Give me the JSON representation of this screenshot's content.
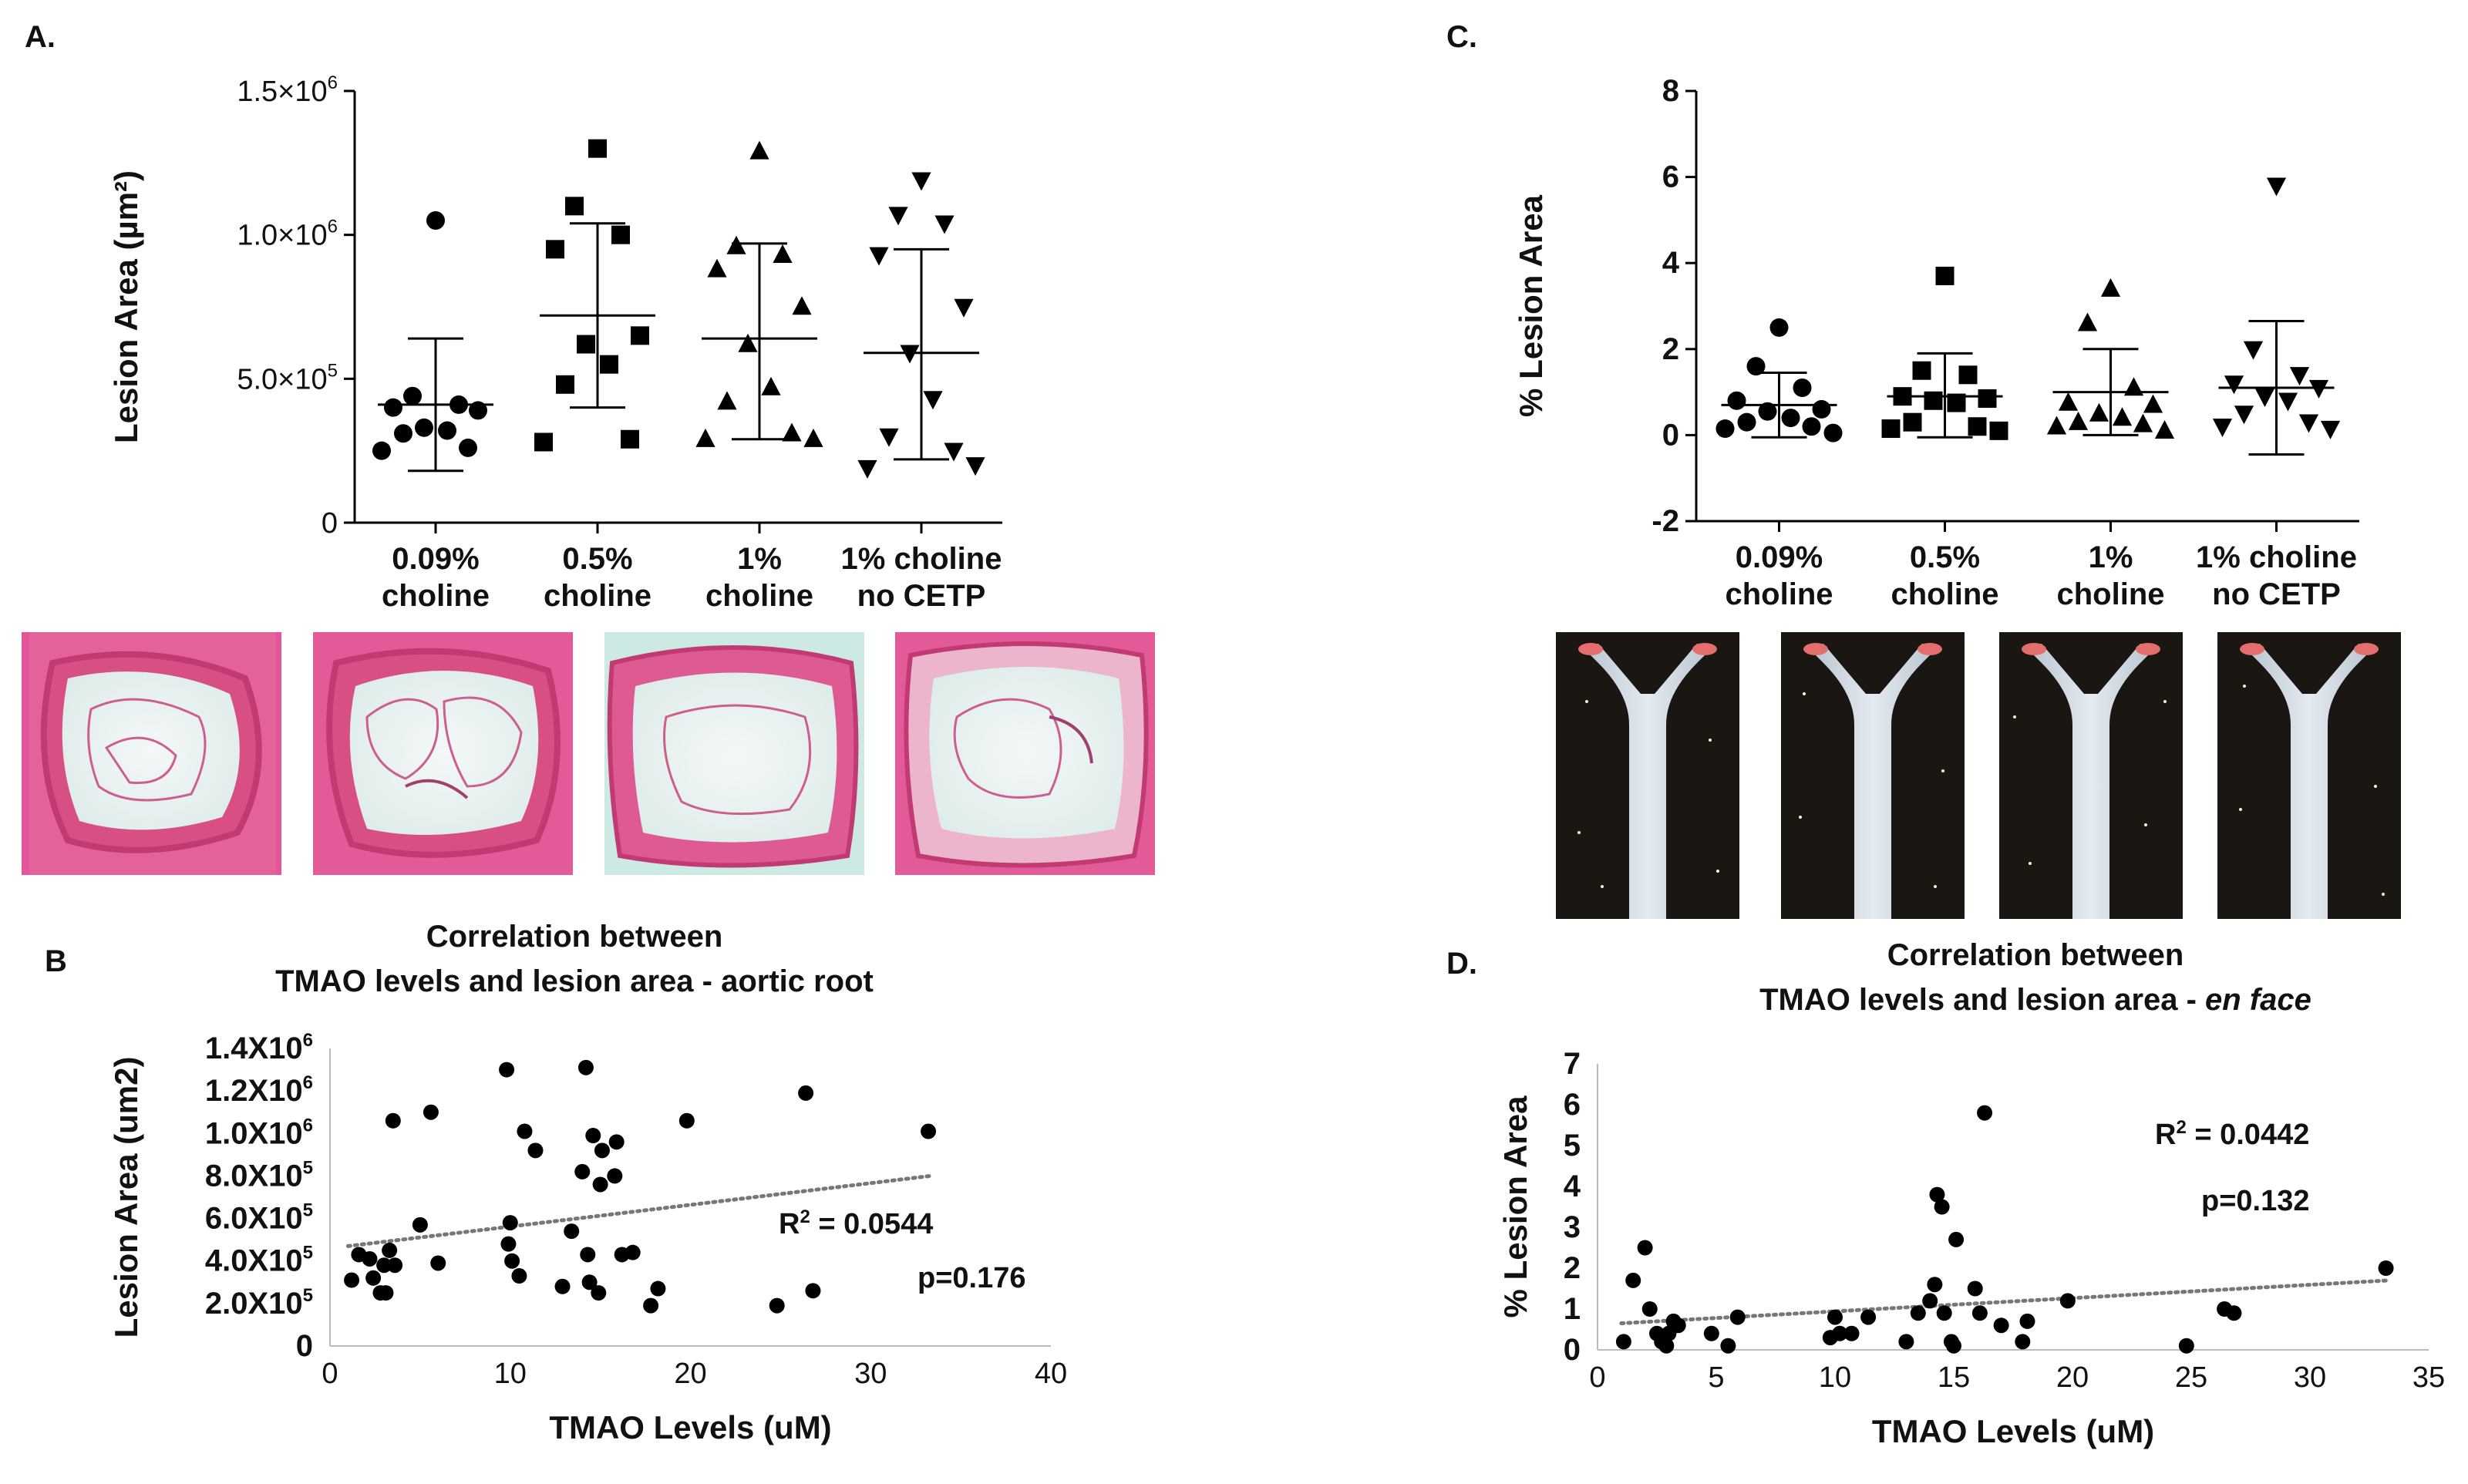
{
  "panels": {
    "a": "A.",
    "b": "B",
    "c": "C.",
    "d": "D."
  },
  "images": {
    "histology": [
      "aortic root section 0.09% choline",
      "aortic root section 0.5% choline",
      "aortic root section 1% choline",
      "aortic root section 1% choline no CETP"
    ],
    "aorta": [
      "en face aorta 0.09% choline",
      "en face aorta 0.5% choline",
      "en face aorta 1% choline",
      "en face aorta 1% choline no CETP"
    ]
  },
  "chart_data": [
    {
      "id": "A",
      "type": "scatter",
      "ylabel": "Lesion Area (µm²)",
      "ylim": [
        0,
        1500000
      ],
      "yticks": [
        {
          "v": 0,
          "m": "0",
          "e": ""
        },
        {
          "v": 500000,
          "m": "5.0×10",
          "e": "5"
        },
        {
          "v": 1000000,
          "m": "1.0×10",
          "e": "6"
        },
        {
          "v": 1500000,
          "m": "1.5×10",
          "e": "6"
        }
      ],
      "categories": [
        [
          "0.09%",
          "choline"
        ],
        [
          "0.5%",
          "choline"
        ],
        [
          "1%",
          "choline"
        ],
        [
          "1% choline",
          "no CETP"
        ]
      ],
      "markers": [
        "circle",
        "square",
        "triangle-up",
        "triangle-down"
      ],
      "groups": [
        {
          "values": [
            1050000,
            440000,
            410000,
            400000,
            390000,
            330000,
            320000,
            310000,
            260000,
            250000
          ],
          "mean": 410000,
          "sd_low": 180000,
          "sd_high": 640000
        },
        {
          "values": [
            1300000,
            1100000,
            1000000,
            950000,
            650000,
            620000,
            550000,
            480000,
            290000,
            280000
          ],
          "mean": 720000,
          "sd_low": 400000,
          "sd_high": 1040000
        },
        {
          "values": [
            1290000,
            960000,
            930000,
            880000,
            750000,
            620000,
            470000,
            420000,
            310000,
            290000,
            290000
          ],
          "mean": 640000,
          "sd_low": 290000,
          "sd_high": 970000
        },
        {
          "values": [
            1190000,
            1070000,
            1040000,
            930000,
            750000,
            590000,
            430000,
            300000,
            250000,
            190000,
            200000
          ],
          "mean": 590000,
          "sd_low": 220000,
          "sd_high": 950000
        }
      ]
    },
    {
      "id": "C",
      "type": "scatter",
      "ylabel": "% Lesion Area",
      "ylim": [
        -2,
        8
      ],
      "yticks": [
        {
          "v": -2,
          "m": "-2"
        },
        {
          "v": 0,
          "m": "0"
        },
        {
          "v": 2,
          "m": "2"
        },
        {
          "v": 4,
          "m": "4"
        },
        {
          "v": 6,
          "m": "6"
        },
        {
          "v": 8,
          "m": "8"
        }
      ],
      "categories": [
        [
          "0.09%",
          "choline"
        ],
        [
          "0.5%",
          "choline"
        ],
        [
          "1%",
          "choline"
        ],
        [
          "1% choline",
          "no CETP"
        ]
      ],
      "markers": [
        "circle",
        "square",
        "triangle-up",
        "triangle-down"
      ],
      "groups": [
        {
          "values": [
            2.5,
            1.6,
            1.1,
            0.8,
            0.6,
            0.55,
            0.4,
            0.3,
            0.2,
            0.15,
            0.05
          ],
          "mean": 0.7,
          "sd_low": -0.05,
          "sd_high": 1.45
        },
        {
          "values": [
            3.7,
            1.5,
            1.4,
            0.9,
            0.85,
            0.8,
            0.75,
            0.3,
            0.2,
            0.15,
            0.1
          ],
          "mean": 0.9,
          "sd_low": -0.05,
          "sd_high": 1.9
        },
        {
          "values": [
            3.4,
            2.6,
            1.1,
            0.75,
            0.7,
            0.5,
            0.4,
            0.3,
            0.25,
            0.2,
            0.1
          ],
          "mean": 1.0,
          "sd_low": 0.0,
          "sd_high": 2.0
        },
        {
          "values": [
            5.8,
            2.0,
            1.4,
            1.2,
            1.1,
            0.9,
            0.8,
            0.5,
            0.3,
            0.2,
            0.15
          ],
          "mean": 1.1,
          "sd_low": -0.45,
          "sd_high": 2.65
        }
      ]
    },
    {
      "id": "B",
      "type": "scatter",
      "title": [
        "Correlation between",
        "TMAO levels and lesion area - aortic root"
      ],
      "xlabel": "TMAO Levels (uM)",
      "ylabel": "Lesion Area (um2)",
      "xlim": [
        0,
        40
      ],
      "ylim": [
        0,
        1400000
      ],
      "xticks": [
        0,
        10,
        20,
        30,
        40
      ],
      "yticks": [
        {
          "v": 0,
          "m": "0",
          "e": ""
        },
        {
          "v": 200000,
          "m": "2.0X10",
          "e": "5"
        },
        {
          "v": 400000,
          "m": "4.0X10",
          "e": "5"
        },
        {
          "v": 600000,
          "m": "6.0X10",
          "e": "5"
        },
        {
          "v": 800000,
          "m": "8.0X10",
          "e": "5"
        },
        {
          "v": 1000000,
          "m": "1.0X10",
          "e": "6"
        },
        {
          "v": 1200000,
          "m": "1.2X10",
          "e": "6"
        },
        {
          "v": 1400000,
          "m": "1.4X10",
          "e": "6"
        }
      ],
      "points": [
        [
          1.2,
          310000
        ],
        [
          1.6,
          430000
        ],
        [
          2.2,
          410000
        ],
        [
          2.4,
          320000
        ],
        [
          2.8,
          250000
        ],
        [
          3.0,
          380000
        ],
        [
          3.1,
          250000
        ],
        [
          3.3,
          450000
        ],
        [
          3.5,
          1060000
        ],
        [
          3.6,
          380000
        ],
        [
          5.0,
          570000
        ],
        [
          5.6,
          1100000
        ],
        [
          6.0,
          390000
        ],
        [
          9.8,
          1300000
        ],
        [
          9.9,
          480000
        ],
        [
          10.0,
          580000
        ],
        [
          10.1,
          400000
        ],
        [
          10.5,
          330000
        ],
        [
          10.8,
          1010000
        ],
        [
          11.4,
          920000
        ],
        [
          12.9,
          280000
        ],
        [
          13.4,
          540000
        ],
        [
          14.0,
          820000
        ],
        [
          14.2,
          1310000
        ],
        [
          14.3,
          430000
        ],
        [
          14.4,
          300000
        ],
        [
          14.6,
          990000
        ],
        [
          14.9,
          250000
        ],
        [
          15.0,
          760000
        ],
        [
          15.1,
          920000
        ],
        [
          15.8,
          800000
        ],
        [
          15.9,
          960000
        ],
        [
          16.2,
          430000
        ],
        [
          16.8,
          440000
        ],
        [
          17.8,
          190000
        ],
        [
          18.2,
          270000
        ],
        [
          19.8,
          1060000
        ],
        [
          24.8,
          190000
        ],
        [
          26.4,
          1190000
        ],
        [
          26.8,
          260000
        ],
        [
          33.2,
          1010000
        ]
      ],
      "trendline": {
        "x": [
          1.0,
          33.3
        ],
        "y": [
          470000,
          800000
        ]
      },
      "r2": "R² = 0.0544",
      "p": "p=0.176"
    },
    {
      "id": "D",
      "type": "scatter",
      "title": [
        "Correlation between",
        "TMAO levels and lesion area - ",
        "en face"
      ],
      "xlabel": "TMAO Levels (uM)",
      "ylabel": "% Lesion Area",
      "xlim": [
        0,
        35
      ],
      "ylim": [
        0,
        7
      ],
      "xticks": [
        0,
        5,
        10,
        15,
        20,
        25,
        30,
        35
      ],
      "yticks": [
        0,
        1,
        2,
        3,
        4,
        5,
        6,
        7
      ],
      "points": [
        [
          1.1,
          0.2
        ],
        [
          1.5,
          1.7
        ],
        [
          2.0,
          2.5
        ],
        [
          2.2,
          1.0
        ],
        [
          2.5,
          0.4
        ],
        [
          2.7,
          0.2
        ],
        [
          2.9,
          0.1
        ],
        [
          3.0,
          0.4
        ],
        [
          3.2,
          0.7
        ],
        [
          3.4,
          0.6
        ],
        [
          4.8,
          0.4
        ],
        [
          5.5,
          0.1
        ],
        [
          5.9,
          0.8
        ],
        [
          9.8,
          0.3
        ],
        [
          10.0,
          0.8
        ],
        [
          10.2,
          0.4
        ],
        [
          10.7,
          0.4
        ],
        [
          11.4,
          0.8
        ],
        [
          13.0,
          0.2
        ],
        [
          13.5,
          0.9
        ],
        [
          14.0,
          1.2
        ],
        [
          14.2,
          1.6
        ],
        [
          14.3,
          3.8
        ],
        [
          14.5,
          3.5
        ],
        [
          14.6,
          0.9
        ],
        [
          14.9,
          0.2
        ],
        [
          15.0,
          0.1
        ],
        [
          15.1,
          2.7
        ],
        [
          15.9,
          1.5
        ],
        [
          16.1,
          0.9
        ],
        [
          16.3,
          5.8
        ],
        [
          17.0,
          0.6
        ],
        [
          17.9,
          0.2
        ],
        [
          18.1,
          0.7
        ],
        [
          19.8,
          1.2
        ],
        [
          24.8,
          0.1
        ],
        [
          26.4,
          1.0
        ],
        [
          26.8,
          0.9
        ],
        [
          33.2,
          2.0
        ]
      ],
      "trendline": {
        "x": [
          1.0,
          33.3
        ],
        "y": [
          0.65,
          1.7
        ]
      },
      "r2": "R² = 0.0442",
      "p": "p=0.132"
    }
  ]
}
